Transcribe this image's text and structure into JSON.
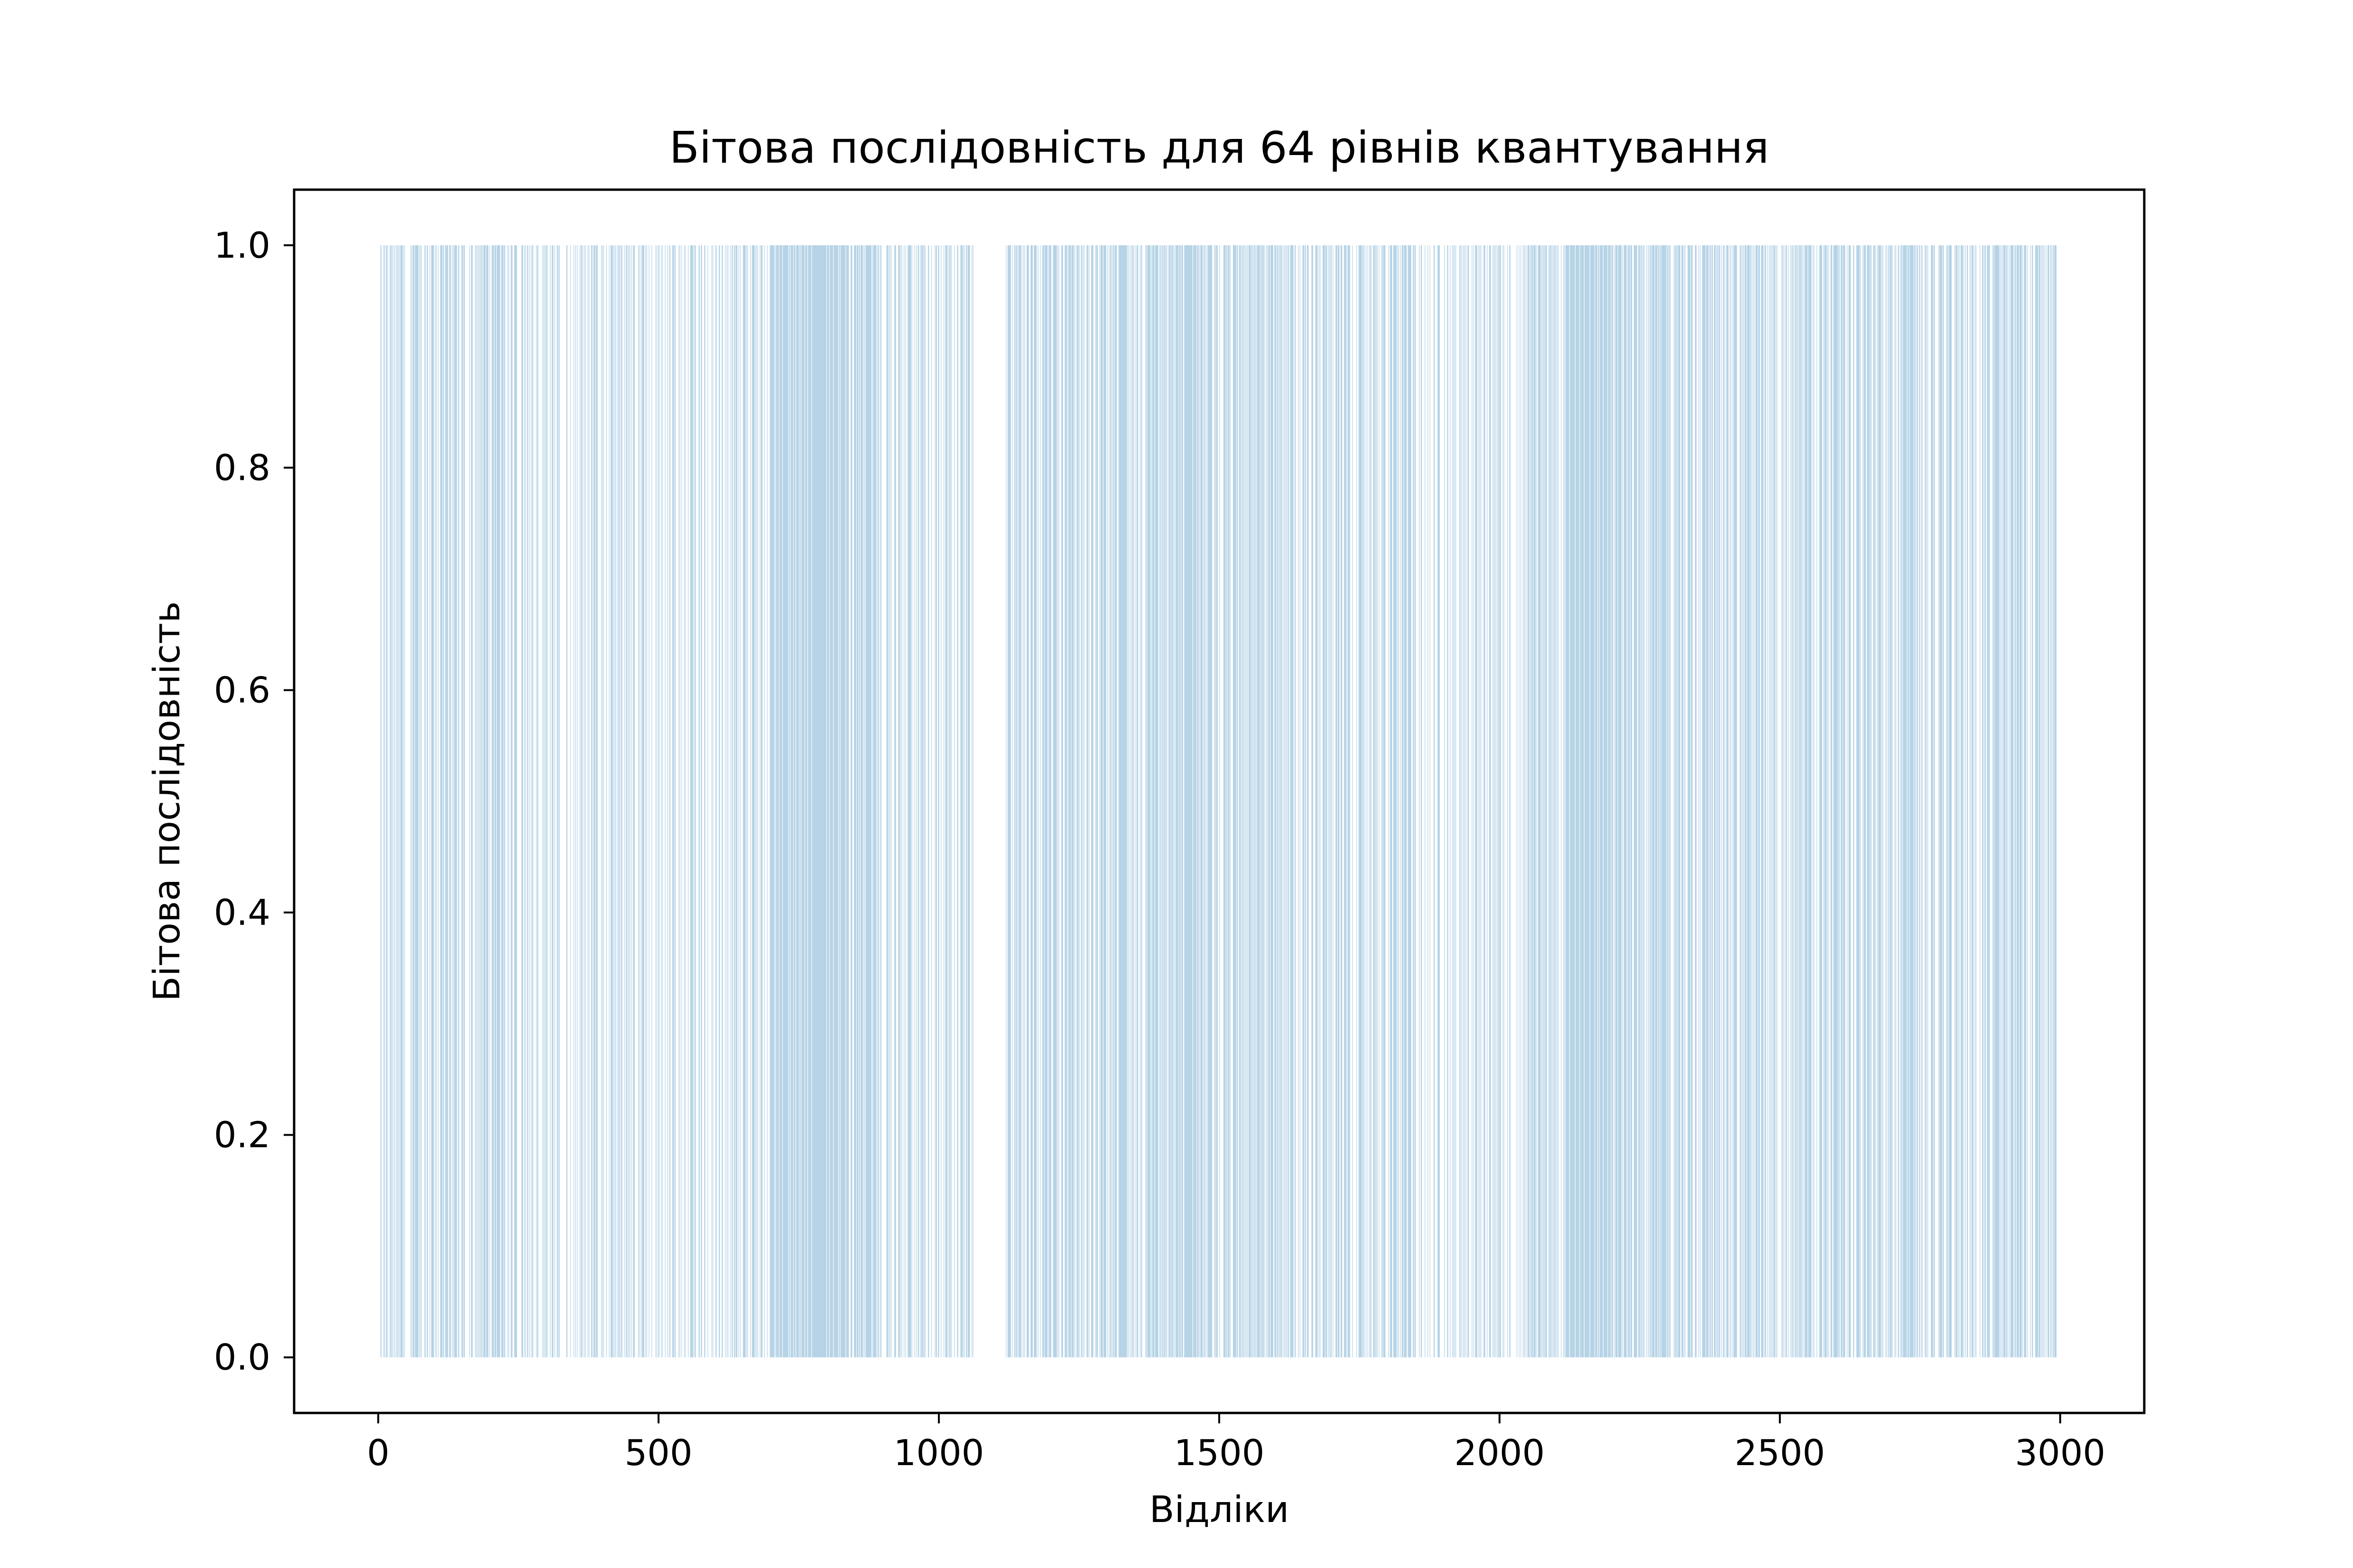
{
  "chart_data": {
    "type": "bar",
    "title": "Бітова послідовність для 64 рівнів квантування",
    "xlabel": "Відліки",
    "ylabel": "Бітова послідовність",
    "xlim": [
      -150,
      3150
    ],
    "ylim": [
      -0.05,
      1.05
    ],
    "xticks": [
      0,
      500,
      1000,
      1500,
      2000,
      2500,
      3000
    ],
    "xtick_labels": [
      "0",
      "500",
      "1000",
      "1500",
      "2000",
      "2500",
      "3000"
    ],
    "yticks": [
      0.0,
      0.2,
      0.4,
      0.6,
      0.8,
      1.0
    ],
    "ytick_labels": [
      "0.0",
      "0.2",
      "0.4",
      "0.6",
      "0.8",
      "1.0"
    ],
    "grid": false,
    "bar_color": "#1f77b4",
    "bar_opacity": 0.3,
    "x_range": [
      0,
      2994
    ],
    "bar_value": 1,
    "empty_intervals": [
      [
        1063,
        1118
      ]
    ],
    "density_profile": {
      "x": [
        0,
        100,
        200,
        300,
        400,
        500,
        600,
        700,
        800,
        900,
        1000,
        1060,
        1120,
        1200,
        1300,
        1400,
        1450,
        1500,
        1600,
        1700,
        1800,
        1900,
        2000,
        2100,
        2150,
        2200,
        2300,
        2400,
        2500,
        2600,
        2700,
        2800,
        2900,
        2994
      ],
      "density": [
        0.5,
        0.5,
        0.55,
        0.35,
        0.45,
        0.3,
        0.45,
        0.6,
        0.9,
        0.55,
        0.45,
        0.4,
        0.55,
        0.55,
        0.6,
        0.6,
        0.85,
        0.6,
        0.55,
        0.45,
        0.55,
        0.4,
        0.35,
        0.6,
        0.9,
        0.8,
        0.65,
        0.6,
        0.55,
        0.65,
        0.6,
        0.6,
        0.55,
        0.55
      ]
    }
  }
}
